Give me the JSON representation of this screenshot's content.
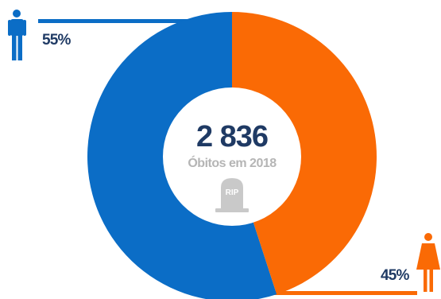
{
  "chart_data": {
    "type": "pie",
    "donut": true,
    "center_value": "2 836",
    "center_label": "Óbitos em 2018",
    "series": [
      {
        "name": "",
        "value": 55,
        "label": "55%",
        "color": "#0b6dc6",
        "icon": "man-icon"
      },
      {
        "name": "",
        "value": 45,
        "label": "45%",
        "color": "#fa6a05",
        "icon": "woman-icon"
      }
    ]
  },
  "tombstone": {
    "text": "RIP",
    "icon": "tombstone-icon",
    "color": "#c9c9c9"
  }
}
